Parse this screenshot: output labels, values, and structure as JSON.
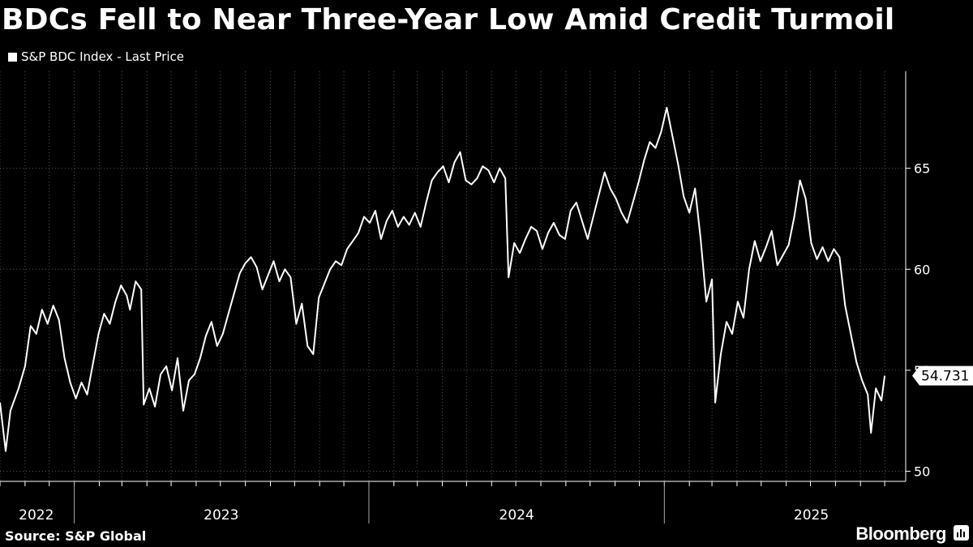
{
  "title": "BDCs Fell to Near Three-Year Low Amid Credit Turmoil",
  "legend_label": "S&P BDC Index - Last Price",
  "source": "Source: S&P Global",
  "brand": "Bloomberg",
  "colors": {
    "background": "#000000",
    "line": "#ffffff",
    "grid": "#555555",
    "text": "#ffffff"
  },
  "chart_data": {
    "type": "line",
    "title": "BDCs Fell to Near Three-Year Low Amid Credit Turmoil",
    "xlabel": "",
    "ylabel": "",
    "ylim": [
      49.5,
      69.8
    ],
    "yticks": [
      50,
      55,
      60,
      65
    ],
    "ytick_labels": [
      "50",
      "55",
      "60",
      "65"
    ],
    "x_range": [
      "2022-10-01",
      "2025-10-27"
    ],
    "x_year_labels": [
      {
        "label": "2022",
        "x": "2022-11-15"
      },
      {
        "label": "2023",
        "x": "2023-07-02"
      },
      {
        "label": "2024",
        "x": "2024-07-02"
      },
      {
        "label": "2025",
        "x": "2025-07-02"
      }
    ],
    "x_year_boundaries": [
      "2023-01-01",
      "2024-01-01",
      "2025-01-01"
    ],
    "grid": true,
    "last_value_label": "54.731",
    "series": [
      {
        "name": "S&P BDC Index - Last Price",
        "points": [
          [
            "2022-10-01",
            53.4
          ],
          [
            "2022-10-08",
            51.0
          ],
          [
            "2022-10-14",
            53.0
          ],
          [
            "2022-10-24",
            54.1
          ],
          [
            "2022-11-01",
            55.2
          ],
          [
            "2022-11-08",
            57.2
          ],
          [
            "2022-11-15",
            56.8
          ],
          [
            "2022-11-22",
            58.0
          ],
          [
            "2022-11-29",
            57.3
          ],
          [
            "2022-12-06",
            58.2
          ],
          [
            "2022-12-13",
            57.5
          ],
          [
            "2022-12-20",
            55.6
          ],
          [
            "2022-12-27",
            54.4
          ],
          [
            "2023-01-03",
            53.6
          ],
          [
            "2023-01-10",
            54.4
          ],
          [
            "2023-01-17",
            53.8
          ],
          [
            "2023-01-24",
            55.3
          ],
          [
            "2023-01-31",
            56.8
          ],
          [
            "2023-02-07",
            57.8
          ],
          [
            "2023-02-14",
            57.3
          ],
          [
            "2023-02-21",
            58.4
          ],
          [
            "2023-02-28",
            59.2
          ],
          [
            "2023-03-07",
            58.7
          ],
          [
            "2023-03-11",
            58.0
          ],
          [
            "2023-03-18",
            59.4
          ],
          [
            "2023-03-25",
            59.0
          ],
          [
            "2023-03-28",
            53.3
          ],
          [
            "2023-04-04",
            54.1
          ],
          [
            "2023-04-11",
            53.2
          ],
          [
            "2023-04-18",
            54.8
          ],
          [
            "2023-04-25",
            55.2
          ],
          [
            "2023-05-02",
            54.0
          ],
          [
            "2023-05-09",
            55.6
          ],
          [
            "2023-05-16",
            53.0
          ],
          [
            "2023-05-23",
            54.5
          ],
          [
            "2023-05-30",
            54.8
          ],
          [
            "2023-06-06",
            55.6
          ],
          [
            "2023-06-13",
            56.7
          ],
          [
            "2023-06-20",
            57.4
          ],
          [
            "2023-06-27",
            56.2
          ],
          [
            "2023-07-04",
            56.8
          ],
          [
            "2023-07-11",
            57.8
          ],
          [
            "2023-07-18",
            58.8
          ],
          [
            "2023-07-25",
            59.8
          ],
          [
            "2023-08-01",
            60.3
          ],
          [
            "2023-08-08",
            60.6
          ],
          [
            "2023-08-15",
            60.1
          ],
          [
            "2023-08-22",
            59.0
          ],
          [
            "2023-08-29",
            59.7
          ],
          [
            "2023-09-05",
            60.4
          ],
          [
            "2023-09-12",
            59.4
          ],
          [
            "2023-09-19",
            60.0
          ],
          [
            "2023-09-26",
            59.6
          ],
          [
            "2023-10-03",
            57.3
          ],
          [
            "2023-10-10",
            58.3
          ],
          [
            "2023-10-17",
            56.2
          ],
          [
            "2023-10-24",
            55.8
          ],
          [
            "2023-10-31",
            58.6
          ],
          [
            "2023-11-07",
            59.3
          ],
          [
            "2023-11-14",
            60.0
          ],
          [
            "2023-11-21",
            60.4
          ],
          [
            "2023-11-28",
            60.2
          ],
          [
            "2023-12-05",
            61.0
          ],
          [
            "2023-12-12",
            61.4
          ],
          [
            "2023-12-19",
            61.8
          ],
          [
            "2023-12-26",
            62.6
          ],
          [
            "2024-01-02",
            62.3
          ],
          [
            "2024-01-09",
            62.9
          ],
          [
            "2024-01-16",
            61.5
          ],
          [
            "2024-01-23",
            62.4
          ],
          [
            "2024-01-30",
            62.9
          ],
          [
            "2024-02-06",
            62.1
          ],
          [
            "2024-02-13",
            62.6
          ],
          [
            "2024-02-20",
            62.2
          ],
          [
            "2024-02-27",
            62.8
          ],
          [
            "2024-03-05",
            62.1
          ],
          [
            "2024-03-12",
            63.3
          ],
          [
            "2024-03-19",
            64.4
          ],
          [
            "2024-03-26",
            64.8
          ],
          [
            "2024-04-02",
            65.1
          ],
          [
            "2024-04-09",
            64.3
          ],
          [
            "2024-04-16",
            65.3
          ],
          [
            "2024-04-23",
            65.8
          ],
          [
            "2024-04-30",
            64.4
          ],
          [
            "2024-05-07",
            64.2
          ],
          [
            "2024-05-14",
            64.5
          ],
          [
            "2024-05-21",
            65.1
          ],
          [
            "2024-05-28",
            64.9
          ],
          [
            "2024-06-04",
            64.3
          ],
          [
            "2024-06-11",
            65.0
          ],
          [
            "2024-06-18",
            64.5
          ],
          [
            "2024-06-22",
            59.6
          ],
          [
            "2024-06-29",
            61.3
          ],
          [
            "2024-07-06",
            60.8
          ],
          [
            "2024-07-13",
            61.5
          ],
          [
            "2024-07-20",
            62.1
          ],
          [
            "2024-07-27",
            61.9
          ],
          [
            "2024-08-03",
            61.0
          ],
          [
            "2024-08-10",
            61.8
          ],
          [
            "2024-08-17",
            62.3
          ],
          [
            "2024-08-24",
            61.7
          ],
          [
            "2024-08-31",
            61.5
          ],
          [
            "2024-09-07",
            62.9
          ],
          [
            "2024-09-14",
            63.3
          ],
          [
            "2024-09-21",
            62.4
          ],
          [
            "2024-09-28",
            61.5
          ],
          [
            "2024-10-05",
            62.6
          ],
          [
            "2024-10-12",
            63.7
          ],
          [
            "2024-10-19",
            64.8
          ],
          [
            "2024-10-26",
            64.0
          ],
          [
            "2024-11-02",
            63.5
          ],
          [
            "2024-11-09",
            62.8
          ],
          [
            "2024-11-16",
            62.3
          ],
          [
            "2024-11-23",
            63.3
          ],
          [
            "2024-11-30",
            64.3
          ],
          [
            "2024-12-07",
            65.4
          ],
          [
            "2024-12-14",
            66.3
          ],
          [
            "2024-12-21",
            66.0
          ],
          [
            "2024-12-28",
            66.8
          ],
          [
            "2025-01-04",
            68.0
          ],
          [
            "2025-01-11",
            66.6
          ],
          [
            "2025-01-18",
            65.2
          ],
          [
            "2025-01-25",
            63.6
          ],
          [
            "2025-02-01",
            62.8
          ],
          [
            "2025-02-08",
            64.0
          ],
          [
            "2025-02-15",
            61.5
          ],
          [
            "2025-02-22",
            58.4
          ],
          [
            "2025-03-01",
            59.5
          ],
          [
            "2025-03-05",
            53.4
          ],
          [
            "2025-03-12",
            55.8
          ],
          [
            "2025-03-19",
            57.4
          ],
          [
            "2025-03-26",
            56.8
          ],
          [
            "2025-04-02",
            58.4
          ],
          [
            "2025-04-09",
            57.6
          ],
          [
            "2025-04-16",
            60.0
          ],
          [
            "2025-04-23",
            61.4
          ],
          [
            "2025-04-30",
            60.4
          ],
          [
            "2025-05-07",
            61.1
          ],
          [
            "2025-05-14",
            61.9
          ],
          [
            "2025-05-21",
            60.2
          ],
          [
            "2025-05-28",
            60.7
          ],
          [
            "2025-06-04",
            61.2
          ],
          [
            "2025-06-11",
            62.6
          ],
          [
            "2025-06-18",
            64.4
          ],
          [
            "2025-06-25",
            63.5
          ],
          [
            "2025-07-02",
            61.3
          ],
          [
            "2025-07-09",
            60.5
          ],
          [
            "2025-07-16",
            61.1
          ],
          [
            "2025-07-23",
            60.4
          ],
          [
            "2025-07-30",
            61.0
          ],
          [
            "2025-08-06",
            60.6
          ],
          [
            "2025-08-13",
            58.2
          ],
          [
            "2025-08-20",
            56.8
          ],
          [
            "2025-08-27",
            55.4
          ],
          [
            "2025-09-03",
            54.5
          ],
          [
            "2025-09-10",
            53.8
          ],
          [
            "2025-09-14",
            51.9
          ],
          [
            "2025-09-20",
            54.1
          ],
          [
            "2025-09-27",
            53.5
          ],
          [
            "2025-10-01",
            54.731
          ]
        ]
      }
    ]
  }
}
